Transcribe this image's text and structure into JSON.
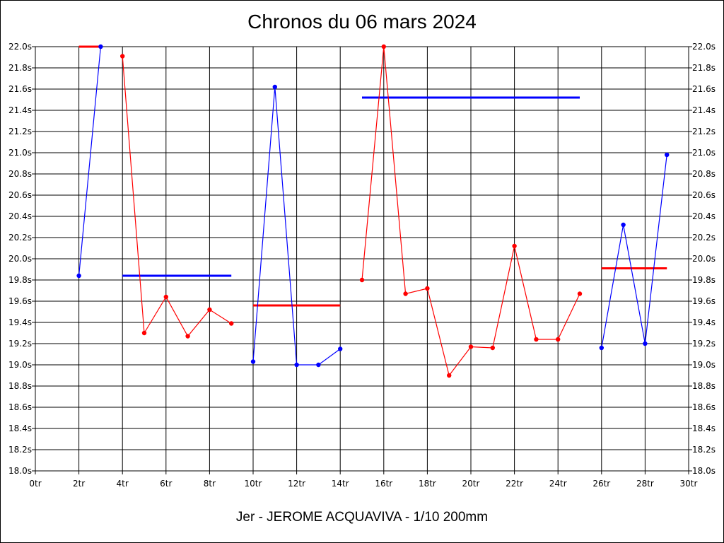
{
  "chart_data": {
    "type": "line",
    "title": "Chronos du 06 mars 2024",
    "subtitle": "Jer - JEROME ACQUAVIVA - 1/10 200mm",
    "ylim": [
      18.0,
      22.0
    ],
    "xlim": [
      0,
      30
    ],
    "y_ticks": [
      "18.0s",
      "18.2s",
      "18.4s",
      "18.6s",
      "18.8s",
      "19.0s",
      "19.2s",
      "19.4s",
      "19.6s",
      "19.8s",
      "20.0s",
      "20.2s",
      "20.4s",
      "20.6s",
      "20.8s",
      "21.0s",
      "21.2s",
      "21.4s",
      "21.6s",
      "21.8s",
      "22.0s"
    ],
    "x_ticks": [
      "0tr",
      "2tr",
      "4tr",
      "6tr",
      "8tr",
      "10tr",
      "12tr",
      "14tr",
      "16tr",
      "18tr",
      "20tr",
      "22tr",
      "24tr",
      "26tr",
      "28tr",
      "30tr"
    ],
    "grid": true,
    "series": [
      {
        "color": "#0000ff",
        "points": [
          [
            2,
            19.84
          ],
          [
            3,
            22.0
          ]
        ]
      },
      {
        "color": "#ff0000",
        "points": [
          [
            4,
            21.91
          ],
          [
            5,
            19.3
          ],
          [
            6,
            19.64
          ],
          [
            7,
            19.27
          ],
          [
            8,
            19.52
          ],
          [
            9,
            19.39
          ]
        ]
      },
      {
        "color": "#0000ff",
        "points": [
          [
            10,
            19.03
          ],
          [
            11,
            21.62
          ],
          [
            12,
            19.0
          ],
          [
            13,
            19.0
          ],
          [
            14,
            19.15
          ]
        ]
      },
      {
        "color": "#ff0000",
        "points": [
          [
            15,
            19.8
          ],
          [
            16,
            22.0
          ],
          [
            17,
            19.67
          ],
          [
            18,
            19.72
          ],
          [
            19,
            18.9
          ],
          [
            20,
            19.17
          ],
          [
            21,
            19.16
          ],
          [
            22,
            20.12
          ],
          [
            23,
            19.24
          ],
          [
            24,
            19.24
          ],
          [
            25,
            19.67
          ]
        ]
      },
      {
        "color": "#0000ff",
        "points": [
          [
            26,
            19.16
          ],
          [
            27,
            20.32
          ],
          [
            28,
            19.2
          ],
          [
            29,
            20.98
          ]
        ]
      }
    ],
    "averages": [
      {
        "color": "#ff0000",
        "x": [
          2,
          3
        ],
        "y": 22.0
      },
      {
        "color": "#0000ff",
        "x": [
          4,
          9
        ],
        "y": 19.84
      },
      {
        "color": "#ff0000",
        "x": [
          10,
          14
        ],
        "y": 19.56
      },
      {
        "color": "#0000ff",
        "x": [
          15,
          25
        ],
        "y": 21.52
      },
      {
        "color": "#ff0000",
        "x": [
          26,
          29
        ],
        "y": 19.91
      }
    ]
  }
}
